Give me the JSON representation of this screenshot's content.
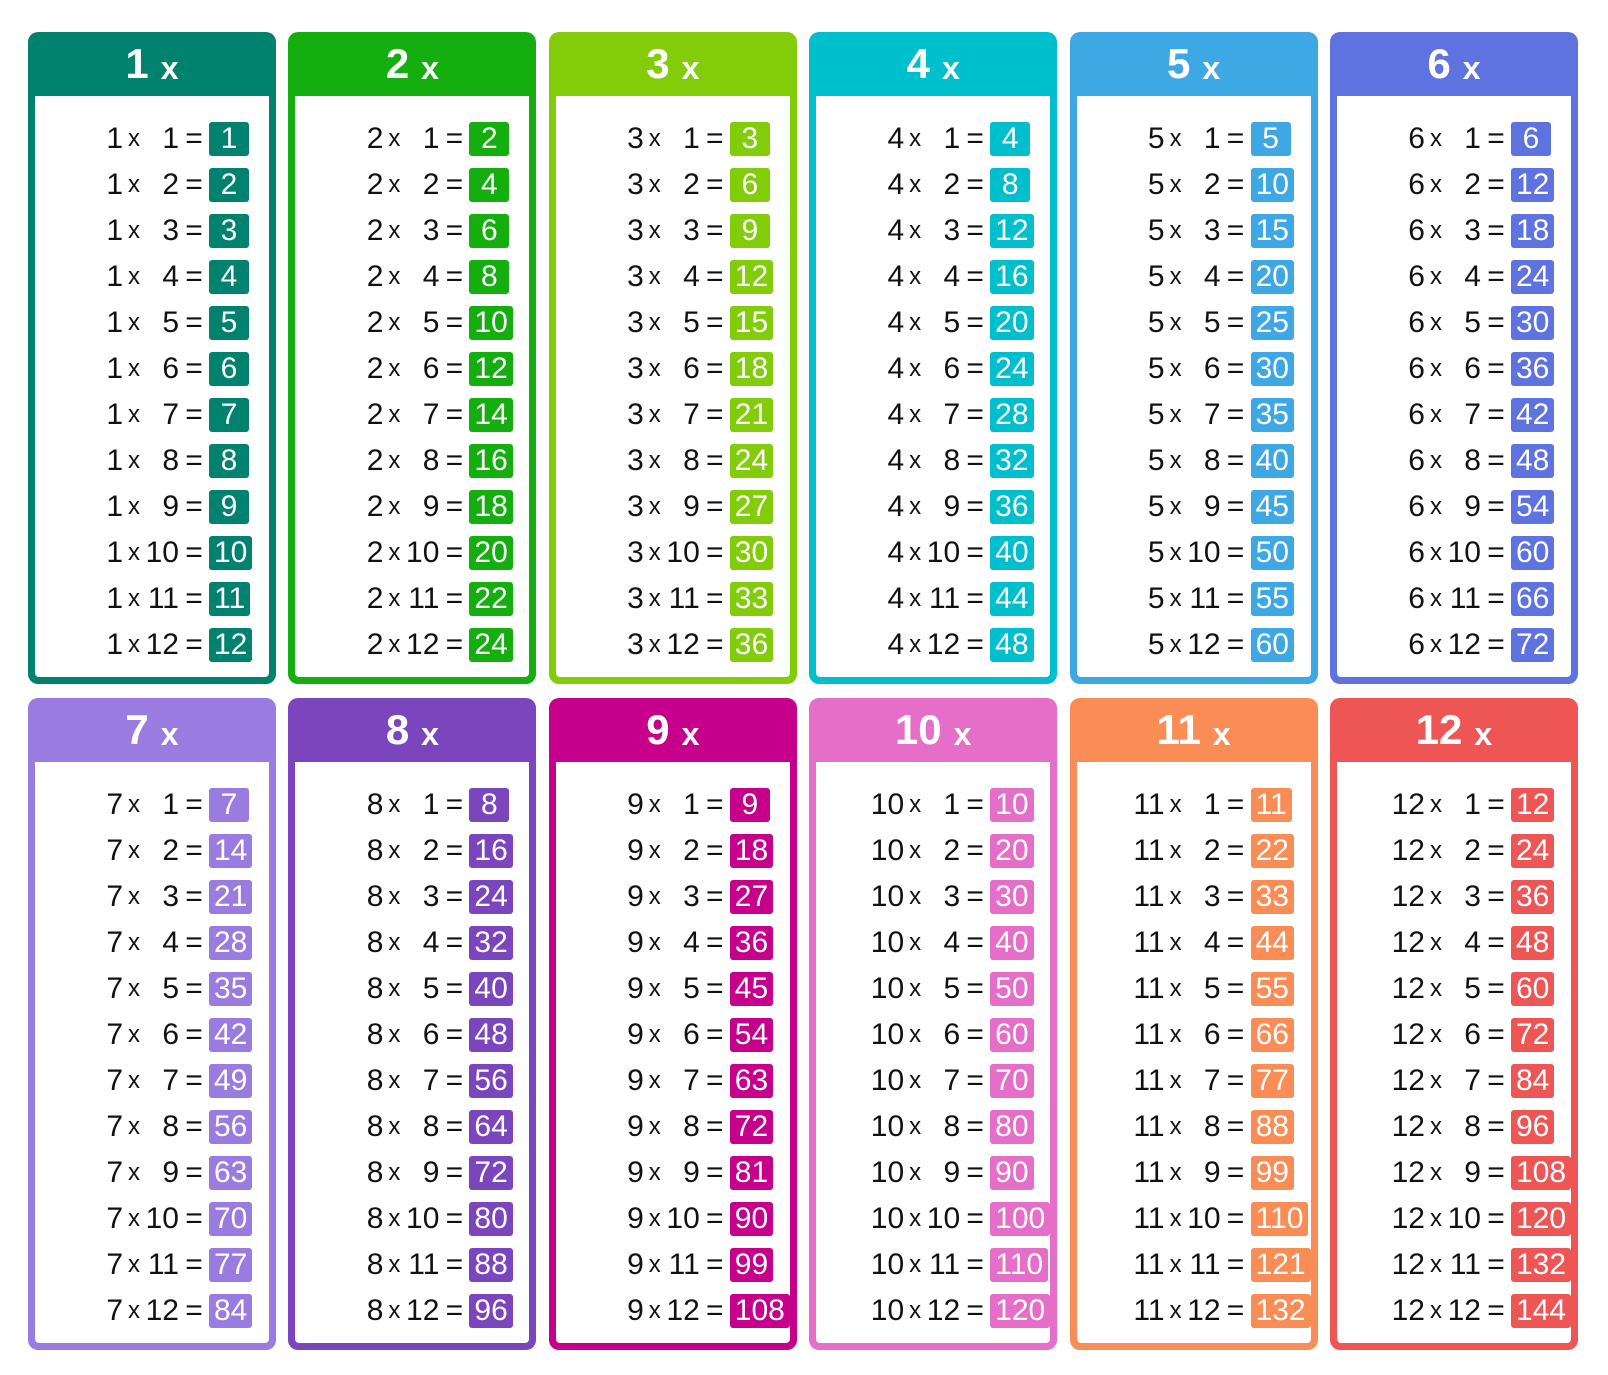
{
  "times_symbol": "x",
  "equals_symbol": "=",
  "tables": [
    {
      "header": "1",
      "color": "#00826F",
      "rows": [
        [
          1,
          1,
          1
        ],
        [
          1,
          2,
          2
        ],
        [
          1,
          3,
          3
        ],
        [
          1,
          4,
          4
        ],
        [
          1,
          5,
          5
        ],
        [
          1,
          6,
          6
        ],
        [
          1,
          7,
          7
        ],
        [
          1,
          8,
          8
        ],
        [
          1,
          9,
          9
        ],
        [
          1,
          10,
          10
        ],
        [
          1,
          11,
          11
        ],
        [
          1,
          12,
          12
        ]
      ]
    },
    {
      "header": "2",
      "color": "#14AE0E",
      "rows": [
        [
          2,
          1,
          2
        ],
        [
          2,
          2,
          4
        ],
        [
          2,
          3,
          6
        ],
        [
          2,
          4,
          8
        ],
        [
          2,
          5,
          10
        ],
        [
          2,
          6,
          12
        ],
        [
          2,
          7,
          14
        ],
        [
          2,
          8,
          16
        ],
        [
          2,
          9,
          18
        ],
        [
          2,
          10,
          20
        ],
        [
          2,
          11,
          22
        ],
        [
          2,
          12,
          24
        ]
      ]
    },
    {
      "header": "3",
      "color": "#82CC0A",
      "rows": [
        [
          3,
          1,
          3
        ],
        [
          3,
          2,
          6
        ],
        [
          3,
          3,
          9
        ],
        [
          3,
          4,
          12
        ],
        [
          3,
          5,
          15
        ],
        [
          3,
          6,
          18
        ],
        [
          3,
          7,
          21
        ],
        [
          3,
          8,
          24
        ],
        [
          3,
          9,
          27
        ],
        [
          3,
          10,
          30
        ],
        [
          3,
          11,
          33
        ],
        [
          3,
          12,
          36
        ]
      ]
    },
    {
      "header": "4",
      "color": "#00BFCD",
      "rows": [
        [
          4,
          1,
          4
        ],
        [
          4,
          2,
          8
        ],
        [
          4,
          3,
          12
        ],
        [
          4,
          4,
          16
        ],
        [
          4,
          5,
          20
        ],
        [
          4,
          6,
          24
        ],
        [
          4,
          7,
          28
        ],
        [
          4,
          8,
          32
        ],
        [
          4,
          9,
          36
        ],
        [
          4,
          10,
          40
        ],
        [
          4,
          11,
          44
        ],
        [
          4,
          12,
          48
        ]
      ]
    },
    {
      "header": "5",
      "color": "#3EA8E4",
      "rows": [
        [
          5,
          1,
          5
        ],
        [
          5,
          2,
          10
        ],
        [
          5,
          3,
          15
        ],
        [
          5,
          4,
          20
        ],
        [
          5,
          5,
          25
        ],
        [
          5,
          6,
          30
        ],
        [
          5,
          7,
          35
        ],
        [
          5,
          8,
          40
        ],
        [
          5,
          9,
          45
        ],
        [
          5,
          10,
          50
        ],
        [
          5,
          11,
          55
        ],
        [
          5,
          12,
          60
        ]
      ]
    },
    {
      "header": "6",
      "color": "#5F73E0",
      "rows": [
        [
          6,
          1,
          6
        ],
        [
          6,
          2,
          12
        ],
        [
          6,
          3,
          18
        ],
        [
          6,
          4,
          24
        ],
        [
          6,
          5,
          30
        ],
        [
          6,
          6,
          36
        ],
        [
          6,
          7,
          42
        ],
        [
          6,
          8,
          48
        ],
        [
          6,
          9,
          54
        ],
        [
          6,
          10,
          60
        ],
        [
          6,
          11,
          66
        ],
        [
          6,
          12,
          72
        ]
      ]
    },
    {
      "header": "7",
      "color": "#9A7BE0",
      "rows": [
        [
          7,
          1,
          7
        ],
        [
          7,
          2,
          14
        ],
        [
          7,
          3,
          21
        ],
        [
          7,
          4,
          28
        ],
        [
          7,
          5,
          35
        ],
        [
          7,
          6,
          42
        ],
        [
          7,
          7,
          49
        ],
        [
          7,
          8,
          56
        ],
        [
          7,
          9,
          63
        ],
        [
          7,
          10,
          70
        ],
        [
          7,
          11,
          77
        ],
        [
          7,
          12,
          84
        ]
      ]
    },
    {
      "header": "8",
      "color": "#7B45BE",
      "rows": [
        [
          8,
          1,
          8
        ],
        [
          8,
          2,
          16
        ],
        [
          8,
          3,
          24
        ],
        [
          8,
          4,
          32
        ],
        [
          8,
          5,
          40
        ],
        [
          8,
          6,
          48
        ],
        [
          8,
          7,
          56
        ],
        [
          8,
          8,
          64
        ],
        [
          8,
          9,
          72
        ],
        [
          8,
          10,
          80
        ],
        [
          8,
          11,
          88
        ],
        [
          8,
          12,
          96
        ]
      ]
    },
    {
      "header": "9",
      "color": "#C6008A",
      "rows": [
        [
          9,
          1,
          9
        ],
        [
          9,
          2,
          18
        ],
        [
          9,
          3,
          27
        ],
        [
          9,
          4,
          36
        ],
        [
          9,
          5,
          45
        ],
        [
          9,
          6,
          54
        ],
        [
          9,
          7,
          63
        ],
        [
          9,
          8,
          72
        ],
        [
          9,
          9,
          81
        ],
        [
          9,
          10,
          90
        ],
        [
          9,
          11,
          99
        ],
        [
          9,
          12,
          108
        ]
      ]
    },
    {
      "header": "10",
      "color": "#E56FC8",
      "rows": [
        [
          10,
          1,
          10
        ],
        [
          10,
          2,
          20
        ],
        [
          10,
          3,
          30
        ],
        [
          10,
          4,
          40
        ],
        [
          10,
          5,
          50
        ],
        [
          10,
          6,
          60
        ],
        [
          10,
          7,
          70
        ],
        [
          10,
          8,
          80
        ],
        [
          10,
          9,
          90
        ],
        [
          10,
          10,
          100
        ],
        [
          10,
          11,
          110
        ],
        [
          10,
          12,
          120
        ]
      ]
    },
    {
      "header": "11",
      "color": "#FA8C55",
      "rows": [
        [
          11,
          1,
          11
        ],
        [
          11,
          2,
          22
        ],
        [
          11,
          3,
          33
        ],
        [
          11,
          4,
          44
        ],
        [
          11,
          5,
          55
        ],
        [
          11,
          6,
          66
        ],
        [
          11,
          7,
          77
        ],
        [
          11,
          8,
          88
        ],
        [
          11,
          9,
          99
        ],
        [
          11,
          10,
          110
        ],
        [
          11,
          11,
          121
        ],
        [
          11,
          12,
          132
        ]
      ]
    },
    {
      "header": "12",
      "color": "#EE5656",
      "rows": [
        [
          12,
          1,
          12
        ],
        [
          12,
          2,
          24
        ],
        [
          12,
          3,
          36
        ],
        [
          12,
          4,
          48
        ],
        [
          12,
          5,
          60
        ],
        [
          12,
          6,
          72
        ],
        [
          12,
          7,
          84
        ],
        [
          12,
          8,
          96
        ],
        [
          12,
          9,
          108
        ],
        [
          12,
          10,
          120
        ],
        [
          12,
          11,
          132
        ],
        [
          12,
          12,
          144
        ]
      ]
    }
  ]
}
